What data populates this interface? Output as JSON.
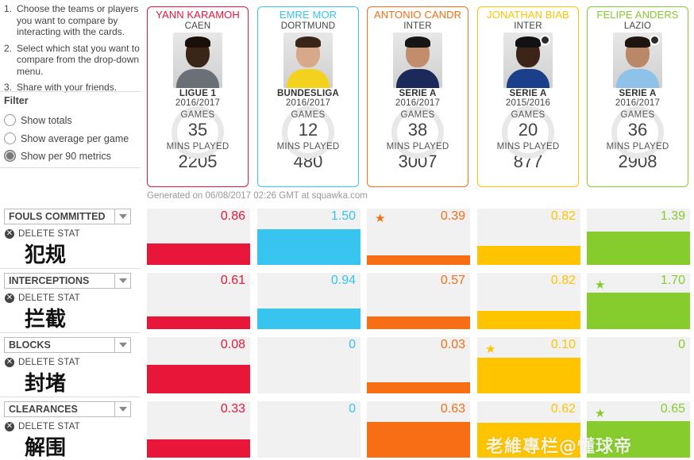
{
  "instructions": [
    {
      "num": "1.",
      "text": "Choose the teams or players you want to compare by interacting with the cards."
    },
    {
      "num": "2.",
      "text": "Select which stat you want to compare from the drop-down menu."
    },
    {
      "num": "3.",
      "text": "Share with your friends."
    }
  ],
  "filter": {
    "title": "Filter",
    "options": [
      {
        "label": "Show totals",
        "checked": false
      },
      {
        "label": "Show average per game",
        "checked": false
      },
      {
        "label": "Show per 90 metrics",
        "checked": true
      }
    ]
  },
  "players": [
    {
      "name": "YANN KARAMOH",
      "team": "CAEN",
      "league": "LIGUE 1",
      "season": "2016/2017",
      "games_label": "GAMES",
      "games": "35",
      "mins_label": "MINS PLAYED",
      "mins": "2205",
      "color": "#e8173a",
      "skin": "#3b2418",
      "hair": "#1b0f0a",
      "kit": "#6b6f78",
      "badge": false
    },
    {
      "name": "EMRE MOR",
      "team": "DORTMUND",
      "league": "BUNDESLIGA",
      "season": "2016/2017",
      "games_label": "GAMES",
      "games": "12",
      "mins_label": "MINS PLAYED",
      "mins": "480",
      "color": "#37c4ef",
      "skin": "#d7a98a",
      "hair": "#3a2516",
      "kit": "#f3d21d",
      "badge": false
    },
    {
      "name": "ANTONIO CANDR",
      "team": "INTER",
      "league": "SERIE A",
      "season": "2016/2017",
      "games_label": "GAMES",
      "games": "38",
      "mins_label": "MINS PLAYED",
      "mins": "3007",
      "color": "#f86e14",
      "skin": "#c18d6c",
      "hair": "#161616",
      "kit": "#1b2a5a",
      "badge": false
    },
    {
      "name": "JONATHAN BIAB",
      "team": "INTER",
      "league": "SERIE A",
      "season": "2015/2016",
      "games_label": "GAMES",
      "games": "20",
      "mins_label": "MINS PLAYED",
      "mins": "877",
      "color": "#ffc400",
      "skin": "#3d2419",
      "hair": "#121212",
      "kit": "#1b3f8a",
      "badge": true
    },
    {
      "name": "FELIPE ANDERS",
      "team": "LAZIO",
      "league": "SERIE A",
      "season": "2016/2017",
      "games_label": "GAMES",
      "games": "36",
      "mins_label": "MINS PLAYED",
      "mins": "2908",
      "color": "#85cc2c",
      "skin": "#b88868",
      "hair": "#1e1410",
      "kit": "#8fc2e8",
      "badge": true
    }
  ],
  "generated": "Generated on 06/08/2017 02:26 GMT at squawka.com",
  "stats": [
    {
      "label": "FOULS COMMITTED",
      "delete": "DELETE STAT",
      "cn": "犯规",
      "values": [
        "0.86",
        "1.50",
        "0.39",
        "0.82",
        "1.39"
      ],
      "fill": [
        0.38,
        0.63,
        0.17,
        0.34,
        0.59
      ],
      "star": 2
    },
    {
      "label": "INTERCEPTIONS",
      "delete": "DELETE STAT",
      "cn": "拦截",
      "values": [
        "0.61",
        "0.94",
        "0.57",
        "0.82",
        "1.70"
      ],
      "fill": [
        0.23,
        0.37,
        0.22,
        0.32,
        0.65
      ],
      "star": 4
    },
    {
      "label": "BLOCKS",
      "delete": "DELETE STAT",
      "cn": "封堵",
      "values": [
        "0.08",
        "0",
        "0.03",
        "0.10",
        "0"
      ],
      "fill": [
        0.51,
        0,
        0.2,
        0.63,
        0
      ],
      "star": 3
    },
    {
      "label": "CLEARANCES",
      "delete": "DELETE STAT",
      "cn": "解围",
      "values": [
        "0.33",
        "0",
        "0.63",
        "0.62",
        "0.65"
      ],
      "fill": [
        0.32,
        0,
        0.63,
        0.62,
        0.65
      ],
      "star": 4
    }
  ],
  "watermark": "老維專栏@懂球帝"
}
